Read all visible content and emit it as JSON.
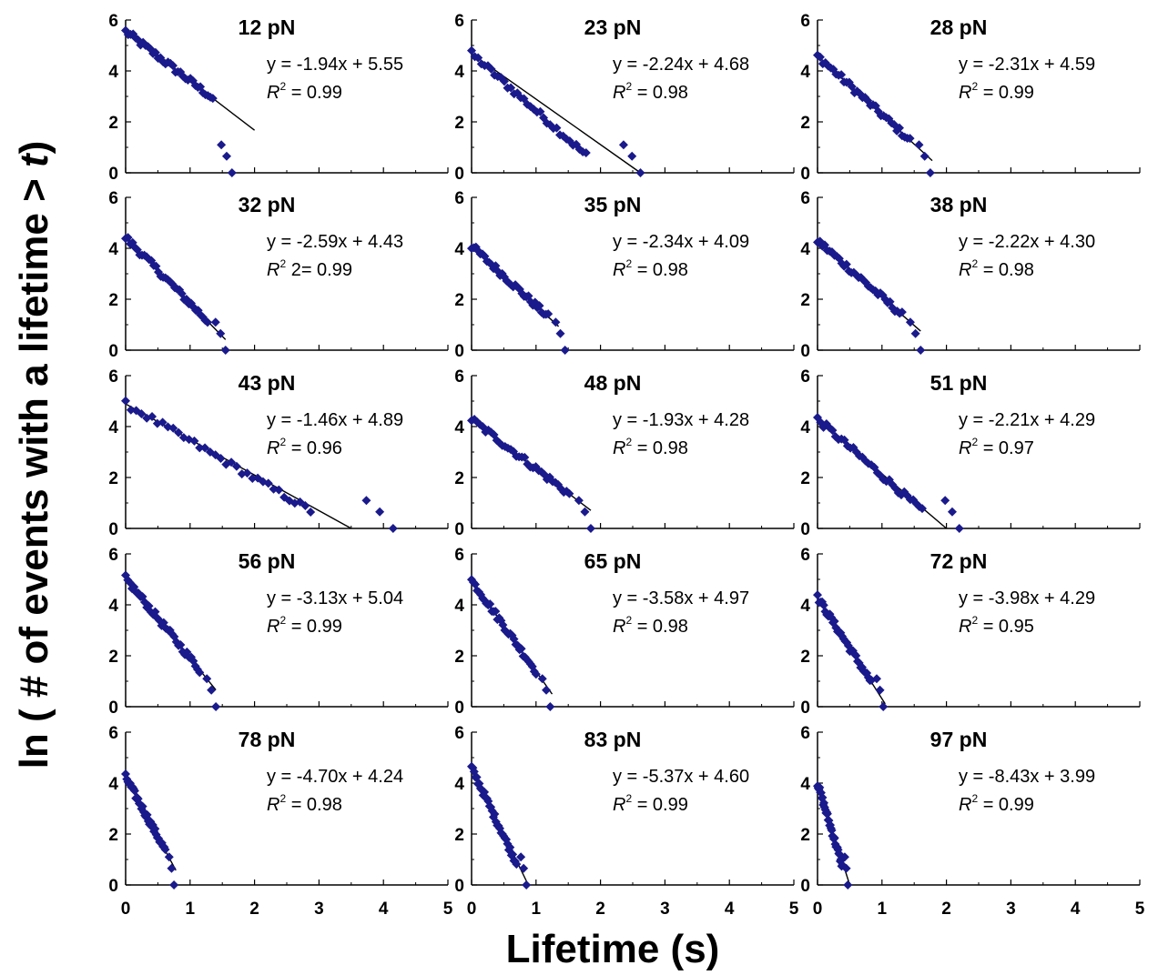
{
  "figure": {
    "xlabel": "Lifetime (s)",
    "ylabel_prefix": "ln ( # of events with a lifetime > ",
    "ylabel_var": "t",
    "ylabel_suffix": ")"
  },
  "colors": {
    "marker": "#1a1a8c",
    "fit_line": "#000000",
    "axis": "#000000"
  },
  "chart_data": {
    "type": "scatter",
    "layout": "grid 5 rows x 3 columns, shared axes",
    "xlim": [
      0,
      5
    ],
    "ylim": [
      0,
      6
    ],
    "x_ticks": [
      0,
      1,
      2,
      3,
      4,
      5
    ],
    "y_ticks": [
      0,
      2,
      4,
      6
    ],
    "grid": false,
    "marker": "diamond",
    "panels": [
      {
        "title": "12 pN",
        "slope": -1.94,
        "intercept": 5.55,
        "eq": "y = -1.94x + 5.55",
        "r2": "= 0.99",
        "fit_x_end": 2.0,
        "x_max": 1.65
      },
      {
        "title": "23 pN",
        "slope": -2.24,
        "intercept": 4.68,
        "eq": "y = -2.24x + 4.68",
        "r2": "= 0.98",
        "fit_x_end": 2.62,
        "x_max": 2.62
      },
      {
        "title": "28 pN",
        "slope": -2.31,
        "intercept": 4.59,
        "eq": "y = -2.31x + 4.59",
        "r2": "= 0.99",
        "fit_x_end": 1.78,
        "x_max": 1.75
      },
      {
        "title": "32 pN",
        "slope": -2.59,
        "intercept": 4.43,
        "eq": "y = -2.59x + 4.43",
        "r2": "2= 0.99",
        "fit_x_end": 1.55,
        "x_max": 1.55
      },
      {
        "title": "35 pN",
        "slope": -2.34,
        "intercept": 4.09,
        "eq": "y = -2.34x + 4.09",
        "r2": "= 0.98",
        "fit_x_end": 1.35,
        "x_max": 1.45
      },
      {
        "title": "38 pN",
        "slope": -2.22,
        "intercept": 4.3,
        "eq": "y = -2.22x + 4.30",
        "r2": "= 0.98",
        "fit_x_end": 1.6,
        "x_max": 1.6
      },
      {
        "title": "43 pN",
        "slope": -1.46,
        "intercept": 4.89,
        "eq": "y = -1.46x + 4.89",
        "r2": "= 0.96",
        "fit_x_end": 3.5,
        "x_max": 4.15
      },
      {
        "title": "48 pN",
        "slope": -1.93,
        "intercept": 4.28,
        "eq": "y = -1.93x + 4.28",
        "r2": "= 0.98",
        "fit_x_end": 1.85,
        "x_max": 1.85
      },
      {
        "title": "51 pN",
        "slope": -2.21,
        "intercept": 4.29,
        "eq": "y = -2.21x + 4.29",
        "r2": "= 0.97",
        "fit_x_end": 2.0,
        "x_max": 2.2
      },
      {
        "title": "56 pN",
        "slope": -3.13,
        "intercept": 5.04,
        "eq": "y = -3.13x + 5.04",
        "r2": "= 0.99",
        "fit_x_end": 1.4,
        "x_max": 1.4
      },
      {
        "title": "65 pN",
        "slope": -3.58,
        "intercept": 4.97,
        "eq": "y = -3.58x + 4.97",
        "r2": "= 0.98",
        "fit_x_end": 1.25,
        "x_max": 1.22
      },
      {
        "title": "72 pN",
        "slope": -3.98,
        "intercept": 4.29,
        "eq": "y = -3.98x + 4.29",
        "r2": "= 0.95",
        "fit_x_end": 1.05,
        "x_max": 1.02
      },
      {
        "title": "78 pN",
        "slope": -4.7,
        "intercept": 4.24,
        "eq": "y = -4.70x + 4.24",
        "r2": "= 0.98",
        "fit_x_end": 0.78,
        "x_max": 0.75
      },
      {
        "title": "83 pN",
        "slope": -5.37,
        "intercept": 4.6,
        "eq": "y = -5.37x + 4.60",
        "r2": "= 0.99",
        "fit_x_end": 0.88,
        "x_max": 0.85
      },
      {
        "title": "97 pN",
        "slope": -8.43,
        "intercept": 3.99,
        "eq": "y = -8.43x + 3.99",
        "r2": "= 0.99",
        "fit_x_end": 0.5,
        "x_max": 0.47
      }
    ]
  }
}
